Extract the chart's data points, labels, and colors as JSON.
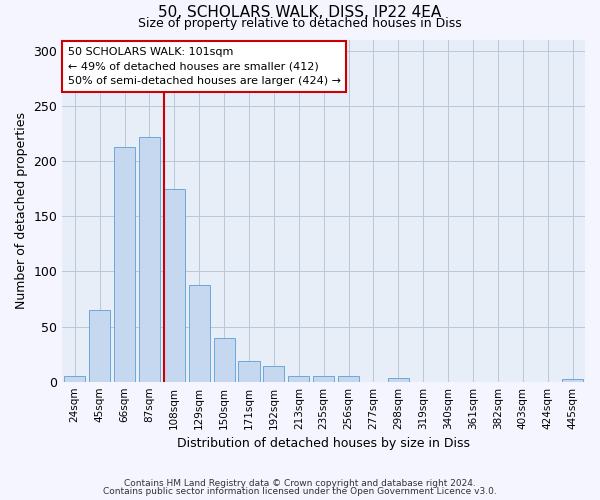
{
  "title1": "50, SCHOLARS WALK, DISS, IP22 4EA",
  "title2": "Size of property relative to detached houses in Diss",
  "xlabel": "Distribution of detached houses by size in Diss",
  "ylabel": "Number of detached properties",
  "bar_color": "#c5d8f0",
  "bar_edge_color": "#5a9fd4",
  "background_color": "#e8eef8",
  "grid_color": "#b8c8dc",
  "categories": [
    "24sqm",
    "45sqm",
    "66sqm",
    "87sqm",
    "108sqm",
    "129sqm",
    "150sqm",
    "171sqm",
    "192sqm",
    "213sqm",
    "235sqm",
    "256sqm",
    "277sqm",
    "298sqm",
    "319sqm",
    "340sqm",
    "361sqm",
    "382sqm",
    "403sqm",
    "424sqm",
    "445sqm"
  ],
  "values": [
    5,
    65,
    213,
    222,
    175,
    88,
    40,
    19,
    14,
    5,
    5,
    5,
    0,
    3,
    0,
    0,
    0,
    0,
    0,
    0,
    2
  ],
  "red_line_index": 4,
  "annotation_text": "50 SCHOLARS WALK: 101sqm\n← 49% of detached houses are smaller (412)\n50% of semi-detached houses are larger (424) →",
  "annotation_box_color": "#ffffff",
  "annotation_box_edge_color": "#cc0000",
  "red_line_color": "#cc0000",
  "ylim": [
    0,
    310
  ],
  "yticks": [
    0,
    50,
    100,
    150,
    200,
    250,
    300
  ],
  "footnote1": "Contains HM Land Registry data © Crown copyright and database right 2024.",
  "footnote2": "Contains public sector information licensed under the Open Government Licence v3.0.",
  "fig_facecolor": "#f5f5ff"
}
